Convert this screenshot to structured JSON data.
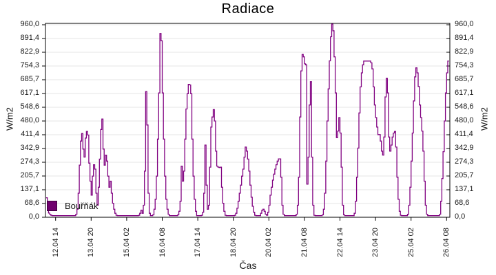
{
  "title": "Radiace",
  "x_axis_title": "Čas",
  "y_axis_title_left": "W/m2",
  "y_axis_title_right": "W/m2",
  "legend": {
    "label": "Bouřňák",
    "marker_color": "#70006e"
  },
  "colors": {
    "line": "#800080",
    "grid": "#e6e6e6",
    "axis": "#000000",
    "text": "#1a1a1a",
    "background": "#ffffff"
  },
  "chart_data": {
    "type": "line",
    "step": true,
    "title": "Radiace",
    "xlabel": "Čas",
    "ylabel": "W/m2",
    "unit": "W/m2",
    "series_name": "Bouřňák",
    "ylim": [
      0,
      960
    ],
    "y_tick_labels": [
      "960,0",
      "891,4",
      "822,9",
      "754,3",
      "685,7",
      "617,1",
      "548,6",
      "480,0",
      "411,4",
      "342,9",
      "274,3",
      "205,7",
      "137,1",
      "68,6",
      "0,0"
    ],
    "x_tick_labels": [
      "12.04 14",
      "13.04 20",
      "15.04 02",
      "16.04 08",
      "17.04 14",
      "18.04 20",
      "20.04 02",
      "21.04 08",
      "22.04 14",
      "23.04 20",
      "25.04 02",
      "26.04 08"
    ],
    "x_tick_interval_hours": 30,
    "sample_interval_hours": 1,
    "start_offset_hours": -8,
    "grid": "horizontal-only",
    "legend_position": "inside-bottom-left",
    "values": [
      97,
      48,
      21,
      14,
      10,
      8,
      8,
      8,
      8,
      8,
      8,
      8,
      8,
      8,
      8,
      8,
      8,
      8,
      8,
      8,
      8,
      8,
      8,
      8,
      8,
      15,
      40,
      120,
      260,
      380,
      418,
      340,
      300,
      395,
      428,
      410,
      270,
      180,
      110,
      205,
      262,
      240,
      120,
      60,
      150,
      290,
      438,
      490,
      340,
      260,
      310,
      280,
      205,
      150,
      180,
      120,
      70,
      40,
      20,
      10,
      8,
      8,
      8,
      8,
      8,
      8,
      8,
      8,
      8,
      8,
      8,
      8,
      8,
      8,
      8,
      8,
      8,
      8,
      10,
      20,
      35,
      20,
      60,
      230,
      627,
      460,
      120,
      20,
      8,
      8,
      12,
      40,
      90,
      205,
      390,
      620,
      916,
      880,
      620,
      390,
      205,
      90,
      40,
      15,
      8,
      8,
      8,
      8,
      8,
      8,
      8,
      12,
      30,
      80,
      255,
      180,
      230,
      390,
      540,
      616,
      663,
      660,
      616,
      390,
      205,
      90,
      30,
      8,
      8,
      8,
      8,
      10,
      25,
      120,
      360,
      160,
      40,
      60,
      250,
      450,
      500,
      537,
      480,
      330,
      255,
      250,
      248,
      250,
      150,
      70,
      30,
      10,
      8,
      8,
      8,
      8,
      8,
      8,
      8,
      10,
      20,
      45,
      80,
      120,
      160,
      205,
      240,
      300,
      350,
      330,
      290,
      230,
      160,
      100,
      55,
      25,
      10,
      8,
      8,
      8,
      8,
      20,
      35,
      40,
      30,
      15,
      10,
      25,
      60,
      110,
      150,
      185,
      215,
      240,
      262,
      280,
      291,
      291,
      200,
      60,
      15,
      8,
      8,
      8,
      8,
      8,
      8,
      8,
      8,
      8,
      8,
      15,
      60,
      200,
      500,
      730,
      812,
      800,
      765,
      760,
      165,
      300,
      560,
      676,
      300,
      60,
      10,
      8,
      8,
      8,
      8,
      8,
      8,
      12,
      40,
      120,
      280,
      480,
      640,
      780,
      900,
      971,
      930,
      800,
      620,
      397,
      430,
      497,
      420,
      250,
      60,
      12,
      8,
      8,
      8,
      8,
      8,
      8,
      8,
      8,
      20,
      80,
      200,
      345,
      520,
      650,
      720,
      760,
      779,
      779,
      779,
      779,
      779,
      779,
      770,
      740,
      650,
      560,
      497,
      450,
      412,
      412,
      380,
      330,
      310,
      400,
      600,
      693,
      620,
      400,
      330,
      360,
      400,
      420,
      428,
      350,
      200,
      90,
      30,
      10,
      8,
      8,
      8,
      8,
      8,
      15,
      60,
      150,
      280,
      420,
      580,
      700,
      745,
      720,
      652,
      560,
      497,
      430,
      330,
      180,
      60,
      15,
      8,
      8,
      8,
      8,
      8,
      8,
      8,
      8,
      8,
      8,
      15,
      80,
      193,
      327,
      480,
      620,
      720,
      779,
      779
    ]
  }
}
